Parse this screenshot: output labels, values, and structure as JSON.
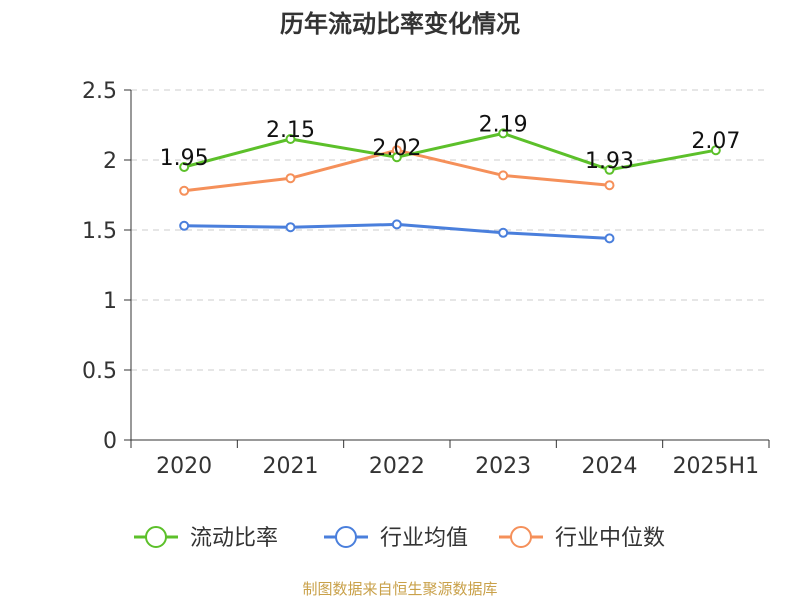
{
  "chart_data": {
    "type": "line",
    "title": "历年流动比率变化情况",
    "categories": [
      "2020",
      "2021",
      "2022",
      "2023",
      "2024",
      "2025H1"
    ],
    "ylim": [
      0,
      2.5
    ],
    "yticks": [
      "0",
      "0.5",
      "1",
      "1.5",
      "2",
      "2.5"
    ],
    "grid": true,
    "legend_position": "bottom",
    "series": [
      {
        "name": "流动比率",
        "color": "#5cc02a",
        "values": [
          1.95,
          2.15,
          2.02,
          2.19,
          1.93,
          2.07
        ],
        "labels": [
          "1.95",
          "2.15",
          "2.02",
          "2.19",
          "1.93",
          "2.07"
        ]
      },
      {
        "name": "行业均值",
        "color": "#4a7fdc",
        "values": [
          1.53,
          1.52,
          1.54,
          1.48,
          1.44,
          null
        ]
      },
      {
        "name": "行业中位数",
        "color": "#f5905a",
        "values": [
          1.78,
          1.87,
          2.07,
          1.89,
          1.82,
          null
        ]
      }
    ],
    "source": "制图数据来自恒生聚源数据库"
  }
}
